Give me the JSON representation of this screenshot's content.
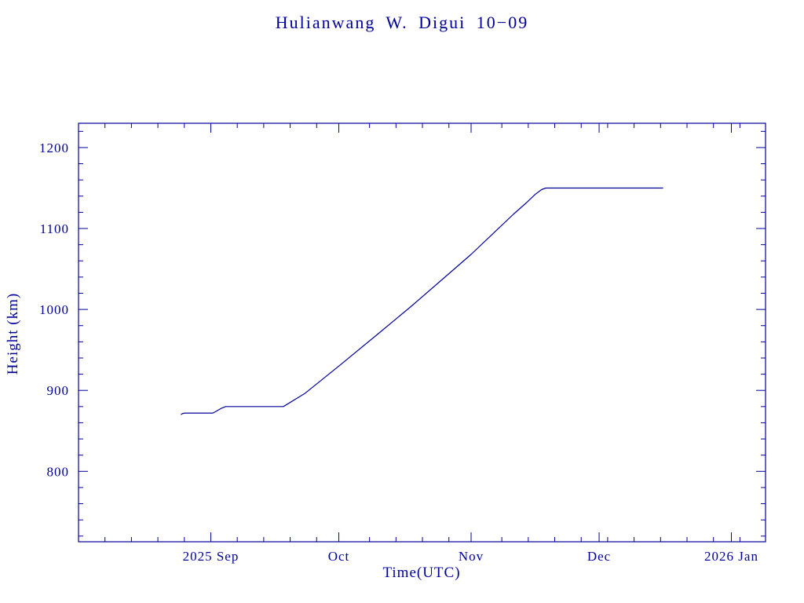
{
  "colors": {
    "accent": "#000099",
    "background": "#ffffff"
  },
  "chart_data": {
    "type": "line",
    "title": "Hulianwang W. Digui 10−09",
    "xlabel": "Time(UTC)",
    "ylabel": "Height (km)",
    "color": "#000099",
    "grid": false,
    "legend": "none",
    "x_axis": {
      "unit": "days since 2025-08-01",
      "range": [
        0,
        161
      ],
      "major_ticks": [
        {
          "x": 31,
          "label": "2025 Sep"
        },
        {
          "x": 61,
          "label": "Oct"
        },
        {
          "x": 92,
          "label": "Nov"
        },
        {
          "x": 122,
          "label": "Dec"
        },
        {
          "x": 153,
          "label": "2026 Jan"
        }
      ],
      "minor_tick_step": 6.2
    },
    "y_axis": {
      "range": [
        713,
        1230
      ],
      "major_ticks": [
        800,
        900,
        1000,
        1100,
        1200
      ],
      "minor_tick_step": 20
    },
    "series": [
      {
        "name": "height",
        "points": [
          [
            24,
            870
          ],
          [
            24.4,
            871.5
          ],
          [
            25,
            872
          ],
          [
            31.5,
            872
          ],
          [
            32.2,
            874
          ],
          [
            33.5,
            878
          ],
          [
            34.5,
            880
          ],
          [
            48,
            880
          ],
          [
            53,
            896
          ],
          [
            61,
            930
          ],
          [
            70,
            969
          ],
          [
            78,
            1004
          ],
          [
            85,
            1036
          ],
          [
            92,
            1068
          ],
          [
            97,
            1093
          ],
          [
            102,
            1118
          ],
          [
            105,
            1132
          ],
          [
            107,
            1142
          ],
          [
            108.5,
            1148
          ],
          [
            109.5,
            1150
          ],
          [
            137,
            1150
          ]
        ]
      }
    ]
  }
}
